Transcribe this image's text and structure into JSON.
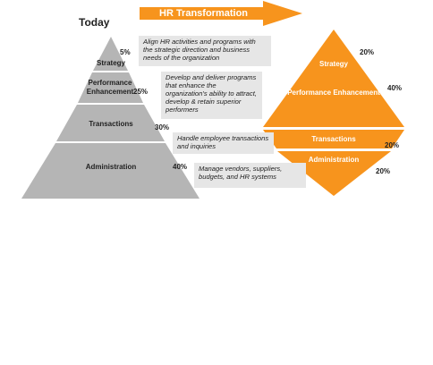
{
  "today_label": "Today",
  "transformation_label": "HR Transformation",
  "colors": {
    "pyramid": "#b5b5b5",
    "orange": "#f7941d",
    "description_bg": "#e6e6e6"
  },
  "today_tiers": [
    {
      "label": "Strategy",
      "percent": "5%",
      "description": "Align HR activities and programs with the strategic direction and business needs of the organization"
    },
    {
      "label": "Performance Enhancement",
      "percent": "25%",
      "description": "Develop and deliver programs that enhance the organization's ability to attract, develop & retain superior performers"
    },
    {
      "label": "Transactions",
      "percent": "30%",
      "description": "Handle employee transactions and inquiries"
    },
    {
      "label": "Administration",
      "percent": "40%",
      "description": "Manage vendors, suppliers, budgets, and HR systems"
    }
  ],
  "transformed_tiers": [
    {
      "label": "Strategy",
      "percent": "20%"
    },
    {
      "label": "Performance Enhancement",
      "percent": "40%"
    },
    {
      "label": "Transactions",
      "percent": "20%"
    },
    {
      "label": "Administration",
      "percent": "20%"
    }
  ]
}
